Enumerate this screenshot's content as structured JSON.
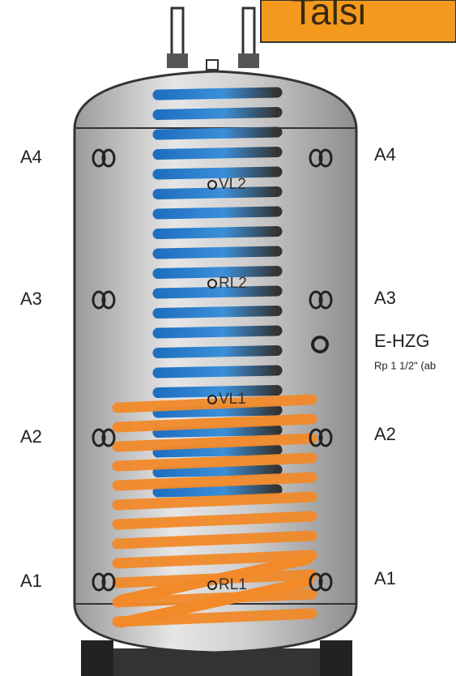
{
  "logo": "Talsi",
  "left_labels": [
    "A4",
    "A3",
    "A2",
    "A1"
  ],
  "right_labels": [
    "A4",
    "A3",
    "A2",
    "A1"
  ],
  "ports": [
    "VL2",
    "RL2",
    "VL1",
    "RL1"
  ],
  "heater": {
    "label": "E-HZG",
    "thread": "Rp 1 1/2\" (ab"
  }
}
